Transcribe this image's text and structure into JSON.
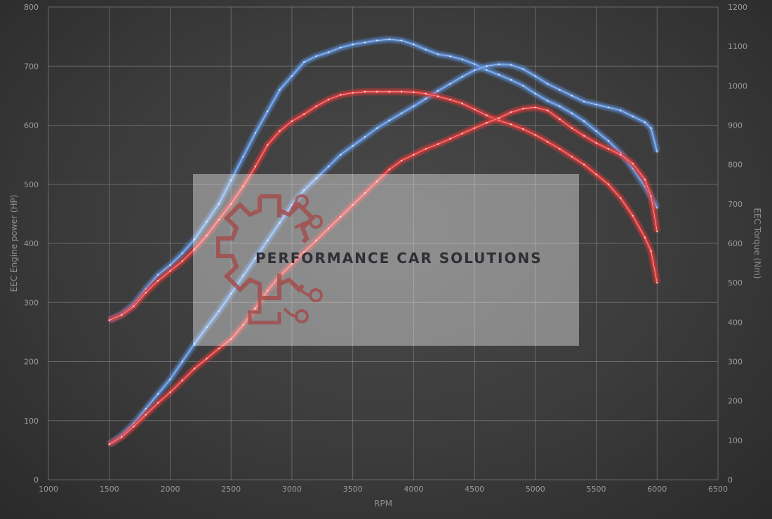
{
  "chart_data": {
    "type": "line",
    "xlabel": "RPM",
    "ylabel_left": "EEC Engine power (HP)",
    "ylabel_right": "EEC Torque (Nm)",
    "xlim": [
      1000,
      6500
    ],
    "ylim_left": [
      0,
      800
    ],
    "ylim_right": [
      0,
      1200
    ],
    "x_ticks": [
      1000,
      1500,
      2000,
      2500,
      3000,
      3500,
      4000,
      4500,
      5000,
      5500,
      6000,
      6500
    ],
    "y_left_ticks": [
      0,
      100,
      200,
      300,
      400,
      500,
      600,
      700,
      800
    ],
    "y_right_ticks": [
      0,
      100,
      200,
      300,
      400,
      500,
      600,
      700,
      800,
      900,
      1000,
      1100,
      1200
    ],
    "grid": true,
    "colors": {
      "blue": "#5b8fd9",
      "red": "#e23a3a"
    },
    "series": [
      {
        "axis": "right",
        "color": "blue",
        "points": [
          [
            1500,
            405
          ],
          [
            1600,
            420
          ],
          [
            1700,
            445
          ],
          [
            1800,
            485
          ],
          [
            1900,
            520
          ],
          [
            2000,
            545
          ],
          [
            2100,
            575
          ],
          [
            2200,
            610
          ],
          [
            2300,
            655
          ],
          [
            2400,
            700
          ],
          [
            2500,
            760
          ],
          [
            2600,
            820
          ],
          [
            2700,
            880
          ],
          [
            2800,
            935
          ],
          [
            2900,
            990
          ],
          [
            3000,
            1025
          ],
          [
            3100,
            1060
          ],
          [
            3200,
            1075
          ],
          [
            3300,
            1085
          ],
          [
            3400,
            1097
          ],
          [
            3500,
            1105
          ],
          [
            3600,
            1110
          ],
          [
            3700,
            1115
          ],
          [
            3800,
            1118
          ],
          [
            3900,
            1115
          ],
          [
            4000,
            1105
          ],
          [
            4100,
            1092
          ],
          [
            4200,
            1080
          ],
          [
            4300,
            1075
          ],
          [
            4400,
            1067
          ],
          [
            4500,
            1055
          ],
          [
            4600,
            1040
          ],
          [
            4700,
            1028
          ],
          [
            4800,
            1015
          ],
          [
            4900,
            1000
          ],
          [
            5000,
            980
          ],
          [
            5100,
            962
          ],
          [
            5200,
            948
          ],
          [
            5300,
            930
          ],
          [
            5400,
            910
          ],
          [
            5500,
            885
          ],
          [
            5600,
            860
          ],
          [
            5700,
            830
          ],
          [
            5800,
            790
          ],
          [
            5900,
            745
          ],
          [
            6000,
            690
          ]
        ]
      },
      {
        "axis": "left",
        "color": "blue",
        "points": [
          [
            1500,
            60
          ],
          [
            1600,
            75
          ],
          [
            1700,
            95
          ],
          [
            1800,
            120
          ],
          [
            1900,
            145
          ],
          [
            2000,
            170
          ],
          [
            2100,
            200
          ],
          [
            2200,
            230
          ],
          [
            2300,
            258
          ],
          [
            2400,
            285
          ],
          [
            2500,
            315
          ],
          [
            2600,
            345
          ],
          [
            2700,
            375
          ],
          [
            2800,
            405
          ],
          [
            2900,
            435
          ],
          [
            3000,
            465
          ],
          [
            3100,
            490
          ],
          [
            3200,
            510
          ],
          [
            3300,
            530
          ],
          [
            3400,
            550
          ],
          [
            3500,
            565
          ],
          [
            3600,
            580
          ],
          [
            3700,
            595
          ],
          [
            3800,
            608
          ],
          [
            3900,
            620
          ],
          [
            4000,
            632
          ],
          [
            4100,
            645
          ],
          [
            4200,
            658
          ],
          [
            4300,
            670
          ],
          [
            4400,
            682
          ],
          [
            4500,
            693
          ],
          [
            4600,
            700
          ],
          [
            4700,
            703
          ],
          [
            4800,
            702
          ],
          [
            4900,
            695
          ],
          [
            5000,
            683
          ],
          [
            5100,
            670
          ],
          [
            5200,
            660
          ],
          [
            5300,
            650
          ],
          [
            5400,
            640
          ],
          [
            5500,
            635
          ],
          [
            5600,
            630
          ],
          [
            5700,
            625
          ],
          [
            5800,
            615
          ],
          [
            5900,
            605
          ],
          [
            5950,
            595
          ],
          [
            6000,
            555
          ]
        ]
      },
      {
        "axis": "right",
        "color": "red",
        "points": [
          [
            1500,
            405
          ],
          [
            1600,
            418
          ],
          [
            1700,
            440
          ],
          [
            1800,
            475
          ],
          [
            1900,
            505
          ],
          [
            2000,
            530
          ],
          [
            2100,
            555
          ],
          [
            2200,
            585
          ],
          [
            2300,
            620
          ],
          [
            2400,
            660
          ],
          [
            2500,
            700
          ],
          [
            2600,
            745
          ],
          [
            2700,
            795
          ],
          [
            2800,
            850
          ],
          [
            2900,
            885
          ],
          [
            3000,
            910
          ],
          [
            3100,
            928
          ],
          [
            3200,
            948
          ],
          [
            3300,
            965
          ],
          [
            3400,
            977
          ],
          [
            3500,
            982
          ],
          [
            3600,
            985
          ],
          [
            3700,
            985
          ],
          [
            3800,
            985
          ],
          [
            3900,
            985
          ],
          [
            4000,
            984
          ],
          [
            4100,
            980
          ],
          [
            4200,
            973
          ],
          [
            4300,
            965
          ],
          [
            4400,
            955
          ],
          [
            4500,
            940
          ],
          [
            4600,
            925
          ],
          [
            4700,
            912
          ],
          [
            4800,
            902
          ],
          [
            4900,
            890
          ],
          [
            5000,
            875
          ],
          [
            5100,
            858
          ],
          [
            5200,
            840
          ],
          [
            5300,
            820
          ],
          [
            5400,
            800
          ],
          [
            5500,
            775
          ],
          [
            5600,
            750
          ],
          [
            5700,
            715
          ],
          [
            5800,
            670
          ],
          [
            5900,
            615
          ],
          [
            5950,
            580
          ],
          [
            6000,
            500
          ]
        ]
      },
      {
        "axis": "left",
        "color": "red",
        "points": [
          [
            1500,
            60
          ],
          [
            1600,
            72
          ],
          [
            1700,
            90
          ],
          [
            1800,
            110
          ],
          [
            1900,
            130
          ],
          [
            2000,
            148
          ],
          [
            2100,
            168
          ],
          [
            2200,
            188
          ],
          [
            2300,
            205
          ],
          [
            2400,
            222
          ],
          [
            2500,
            238
          ],
          [
            2600,
            262
          ],
          [
            2700,
            290
          ],
          [
            2800,
            320
          ],
          [
            2900,
            345
          ],
          [
            3000,
            365
          ],
          [
            3100,
            385
          ],
          [
            3200,
            405
          ],
          [
            3300,
            425
          ],
          [
            3400,
            445
          ],
          [
            3500,
            465
          ],
          [
            3600,
            485
          ],
          [
            3700,
            505
          ],
          [
            3800,
            525
          ],
          [
            3900,
            540
          ],
          [
            4000,
            550
          ],
          [
            4100,
            560
          ],
          [
            4200,
            568
          ],
          [
            4300,
            577
          ],
          [
            4400,
            586
          ],
          [
            4500,
            595
          ],
          [
            4600,
            604
          ],
          [
            4700,
            612
          ],
          [
            4800,
            622
          ],
          [
            4900,
            628
          ],
          [
            5000,
            630
          ],
          [
            5100,
            625
          ],
          [
            5200,
            610
          ],
          [
            5300,
            595
          ],
          [
            5400,
            582
          ],
          [
            5500,
            570
          ],
          [
            5600,
            560
          ],
          [
            5700,
            550
          ],
          [
            5800,
            535
          ],
          [
            5900,
            508
          ],
          [
            5950,
            480
          ],
          [
            6000,
            420
          ]
        ]
      }
    ]
  },
  "watermark": {
    "text": "PERFORMANCE CAR SOLUTIONS"
  }
}
